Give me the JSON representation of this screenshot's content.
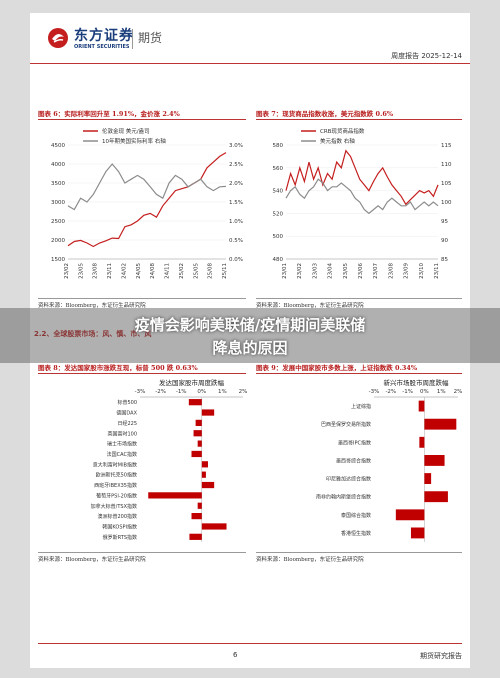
{
  "header": {
    "company_cn": "东方证券",
    "company_en": "ORIENT SECURITIES",
    "section": "期货",
    "report": "周度报告",
    "date": "2025-12-14"
  },
  "colors": {
    "red": "#c41e1e",
    "gray": "#8c8c8c",
    "brand": "#1a3d7c"
  },
  "fig6": {
    "title": "图表 6：实际利率回升至 1.91%，金价涨 2.4%",
    "legend": [
      "伦敦金现 美元/盎司",
      "10年期美国实际利率 右轴"
    ],
    "source": "资料来源：Bloomberg，东证衍生品研究院"
  },
  "fig7": {
    "title": "图表 7：现货商品指数收涨，美元指数跌 0.6%",
    "legend": [
      "CRB现货商品指数",
      "美元指数 右轴"
    ],
    "source": "资料来源：Bloomberg，东证衍生品研究院"
  },
  "section": "2.2、全球股票市场：风、慎、市、风",
  "fig8": {
    "title": "图表 8：发达国家股市涨跌互现，标普 500 跌 0.63%",
    "chart_title": "发达国家股市周度跌幅",
    "source": "资料来源：Bloomberg，东证衍生品研究院"
  },
  "fig9": {
    "title": "图表 9：发展中国家股市多数上涨，上证指数跌 0.34%",
    "chart_title": "新兴市场股市周度跌幅",
    "source": "资料来源：Bloomberg，东证衍生品研究院"
  },
  "overlay": {
    "line1": "疫情会影响美联储/疫情期间美联储",
    "line2": "降息的原因"
  },
  "footer": {
    "page": "6",
    "right": "期货研究报告"
  },
  "chart_data": [
    {
      "type": "line",
      "title": "",
      "x_ticks": [
        "23/02",
        "23/05",
        "23/08",
        "23/11",
        "24/02",
        "24/05",
        "24/08",
        "24/11",
        "25/02",
        "25/05",
        "25/08",
        "25/11"
      ],
      "left_axis": {
        "ylim": [
          1500,
          4500
        ],
        "ticks": [
          1500,
          2000,
          2500,
          3000,
          3500,
          4000,
          4500
        ]
      },
      "right_axis": {
        "ylim": [
          0.0,
          3.0
        ],
        "ticks": [
          "0.0%",
          "0.5%",
          "1.0%",
          "1.5%",
          "2.0%",
          "2.5%",
          "3.0%"
        ]
      },
      "series": [
        {
          "name": "伦敦金现 美元/盎司",
          "axis": "left",
          "values": [
            1850,
            1960,
            1990,
            1920,
            1830,
            1920,
            1980,
            2050,
            2040,
            2350,
            2400,
            2500,
            2650,
            2700,
            2600,
            2900,
            3100,
            3300,
            3350,
            3400,
            3500,
            3600,
            3900,
            4050,
            4200,
            4300
          ]
        },
        {
          "name": "10年期美国实际利率 右轴",
          "axis": "right",
          "values": [
            1.4,
            1.3,
            1.6,
            1.5,
            1.7,
            2.0,
            2.3,
            2.5,
            2.3,
            2.0,
            2.1,
            2.2,
            2.1,
            1.9,
            1.7,
            1.6,
            2.0,
            2.2,
            2.1,
            1.9,
            2.0,
            2.1,
            1.9,
            1.8,
            1.9,
            1.91
          ]
        }
      ]
    },
    {
      "type": "line",
      "title": "",
      "x_ticks": [
        "23/01",
        "23/02",
        "23/03",
        "23/04",
        "23/05",
        "23/06",
        "23/07",
        "23/08",
        "23/09",
        "23/10",
        "23/11"
      ],
      "left_axis": {
        "ylim": [
          480,
          580
        ],
        "ticks": [
          480,
          500,
          520,
          540,
          560,
          580
        ]
      },
      "right_axis": {
        "ylim": [
          85,
          115
        ],
        "ticks": [
          85,
          90,
          95,
          100,
          105,
          110,
          115
        ]
      },
      "series": [
        {
          "name": "CRB现货商品指数",
          "axis": "left",
          "values": [
            540,
            555,
            545,
            560,
            548,
            565,
            550,
            560,
            545,
            555,
            550,
            565,
            560,
            575,
            570,
            560,
            550,
            545,
            540,
            548,
            555,
            560,
            552,
            545,
            540,
            535,
            528,
            532,
            536,
            540,
            538,
            540,
            535,
            545
          ]
        },
        {
          "name": "美元指数 右轴",
          "axis": "right",
          "values": [
            101,
            103,
            104,
            102,
            101,
            103,
            104,
            106,
            105,
            103,
            104,
            104,
            105,
            104,
            103,
            101,
            100,
            98,
            97,
            98,
            99,
            98,
            100,
            101,
            100,
            99,
            99,
            100,
            98,
            99,
            100,
            99,
            100,
            99
          ]
        }
      ]
    },
    {
      "type": "bar",
      "orientation": "horizontal",
      "title": "发达国家股市周度跌幅",
      "xlim": [
        -3,
        2
      ],
      "x_ticks": [
        "-3%",
        "-2%",
        "-1%",
        "0%",
        "1%",
        "2%"
      ],
      "categories": [
        "标普500",
        "德国DAX",
        "日经225",
        "英国富时100",
        "瑞士市场指数",
        "法国CAC指数",
        "意大利富时MIB指数",
        "欧洲斯托克50指数",
        "西班牙IBEX35指数",
        "葡萄牙PSI-20指数",
        "加拿大标普/TSX指数",
        "澳洲标普200指数",
        "韩国KOSPI指数",
        "俄罗斯RTS指数"
      ],
      "values": [
        -0.63,
        0.6,
        -0.3,
        -0.4,
        -0.2,
        -0.5,
        0.3,
        0.2,
        0.6,
        -2.6,
        -0.2,
        -0.5,
        1.2,
        -0.6
      ]
    },
    {
      "type": "bar",
      "orientation": "horizontal",
      "title": "新兴市场股市周度跌幅",
      "xlim": [
        -3,
        2
      ],
      "x_ticks": [
        "-3%",
        "-2%",
        "-1%",
        "0%",
        "1%",
        "2%"
      ],
      "categories": [
        "上证综指",
        "巴西圣保罗交易所指数",
        "墨西哥IPC指数",
        "墨西哥综合指数",
        "印尼雅加达综合指数",
        "南非约翰内斯堡综合指数",
        "泰国综合指数",
        "香港恒生指数"
      ],
      "values": [
        -0.34,
        1.9,
        -0.3,
        1.2,
        0.4,
        1.4,
        -1.7,
        -0.8
      ]
    }
  ]
}
